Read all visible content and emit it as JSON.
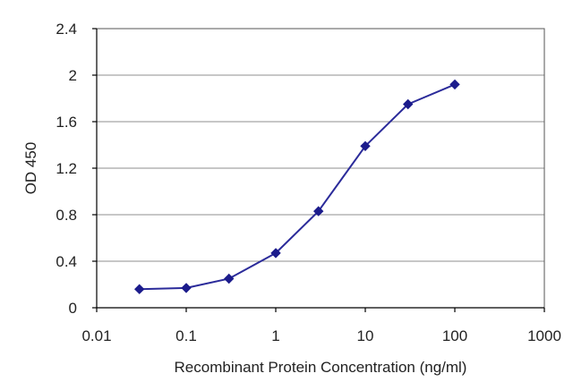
{
  "chart_data": {
    "type": "line",
    "title": "",
    "xlabel": "Recombinant Protein Concentration (ng/ml)",
    "ylabel": "OD 450",
    "x_scale": "log",
    "xlim": [
      0.01,
      1000
    ],
    "ylim": [
      0,
      2.4
    ],
    "x_ticks": [
      0.01,
      0.1,
      1,
      10,
      100,
      1000
    ],
    "x_tick_labels": [
      "0.01",
      "0.1",
      "1",
      "10",
      "100",
      "1000"
    ],
    "y_ticks": [
      0,
      0.4,
      0.8,
      1.2,
      1.6,
      2,
      2.4
    ],
    "y_tick_labels": [
      "0",
      "0.4",
      "0.8",
      "1.2",
      "1.6",
      "2",
      "2.4"
    ],
    "grid": "horizontal",
    "legend": "none",
    "series": [
      {
        "x": [
          0.03,
          0.1,
          0.3,
          1,
          3,
          10,
          30,
          100
        ],
        "values": [
          0.16,
          0.17,
          0.25,
          0.47,
          0.83,
          1.39,
          1.75,
          1.92
        ],
        "color": "#2b2b9a",
        "marker": "diamond"
      }
    ],
    "colors": {
      "line": "#2b2b9a",
      "marker": "#1c1c8c",
      "grid": "#8f8f8f",
      "axis": "#000000"
    }
  }
}
